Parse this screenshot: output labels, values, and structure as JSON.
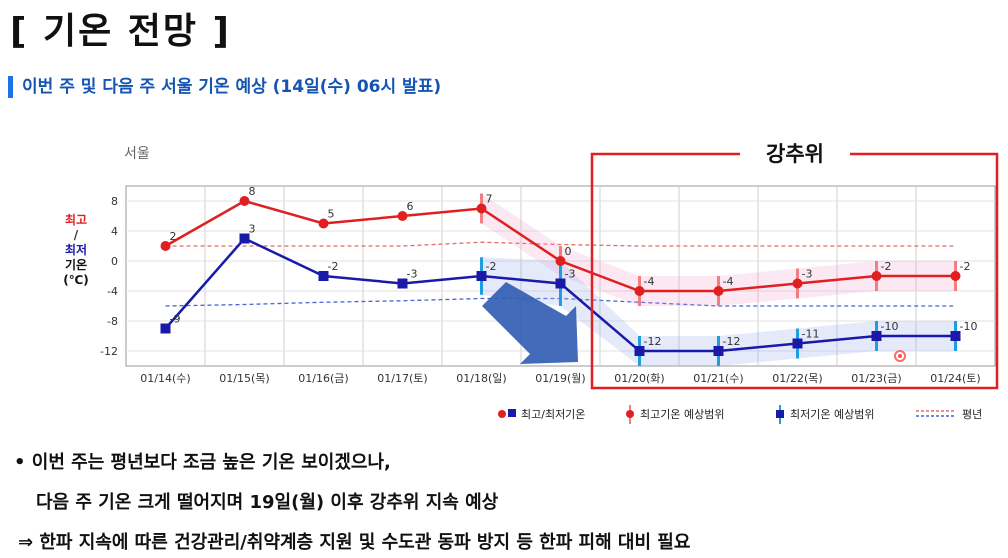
{
  "page": {
    "title": "[ 기온 전망 ]",
    "subtitle": "이번 주 및 다음 주 서울 기온 예상 (14일(수) 06시 발표)"
  },
  "chart_data": {
    "type": "line",
    "region_label": "서울",
    "ylabel_lines": [
      "최고",
      "/",
      "최저",
      "기온",
      "(℃)"
    ],
    "ylabel_colors": [
      "#e02020",
      "#333333",
      "#1a1aa8",
      "#111111",
      "#111111"
    ],
    "yticks": [
      8,
      4,
      0,
      -4,
      -8,
      -12
    ],
    "ylim": [
      -14,
      10
    ],
    "categories": [
      "01/14(수)",
      "01/15(목)",
      "01/16(금)",
      "01/17(토)",
      "01/18(일)",
      "01/19(월)",
      "01/20(화)",
      "01/21(수)",
      "01/22(목)",
      "01/23(금)",
      "01/24(토)"
    ],
    "series": [
      {
        "name": "최고",
        "color": "#e02020",
        "values": [
          2,
          8,
          5,
          6,
          7,
          0,
          -4,
          -4,
          -3,
          -2,
          -2
        ],
        "labels": [
          "2",
          "8",
          "5",
          "6",
          "7",
          "0",
          "-4",
          "-4",
          "-3",
          "-2",
          "-2"
        ]
      },
      {
        "name": "최저",
        "color": "#1a1aa8",
        "values": [
          -9,
          3,
          -2,
          -3,
          -2,
          -3,
          -12,
          -12,
          -11,
          -10,
          -10
        ],
        "labels": [
          "-9",
          "3",
          "-2",
          "-3",
          "-2",
          "-3",
          "-12",
          "-12",
          "-11",
          "-10",
          "-10"
        ]
      }
    ],
    "normal_max": [
      2,
      2,
      2,
      2,
      2.5,
      2.2,
      2,
      2,
      2,
      2,
      2
    ],
    "normal_min": [
      -6,
      -5.8,
      -5.5,
      -5.3,
      -5,
      -5,
      -5.5,
      -6,
      -6,
      -6,
      -6
    ],
    "range_max": [
      null,
      null,
      null,
      null,
      [
        5,
        9
      ],
      [
        -2,
        2
      ],
      [
        -6,
        -2
      ],
      [
        -6,
        -2
      ],
      [
        -5,
        -1
      ],
      [
        -4,
        0
      ],
      [
        -4,
        0
      ]
    ],
    "range_min": [
      null,
      null,
      null,
      null,
      [
        -4.5,
        0.5
      ],
      [
        -6,
        0
      ],
      [
        -14,
        -10
      ],
      [
        -14,
        -10
      ],
      [
        -13,
        -9
      ],
      [
        -12,
        -8
      ],
      [
        -12,
        -8
      ]
    ],
    "highlight": {
      "label": "강추위",
      "color": "#e02020",
      "from_index": 6
    },
    "arrow_color": "#2f5bb3",
    "legend": [
      "최고/최저기온",
      "최고기온 예상범위",
      "최저기온 예상범위",
      "평년"
    ]
  },
  "bullets": [
    "• 이번 주는 평년보다 조금 높은 기온 보이겠으나,",
    "다음 주 기온 크게 떨어지며 19일(월) 이후 강추위 지속 예상",
    "⇒ 한파 지속에 따른 건강관리/취약계층 지원 및 수도관 동파 방지 등 한파 피해 대비 필요"
  ]
}
